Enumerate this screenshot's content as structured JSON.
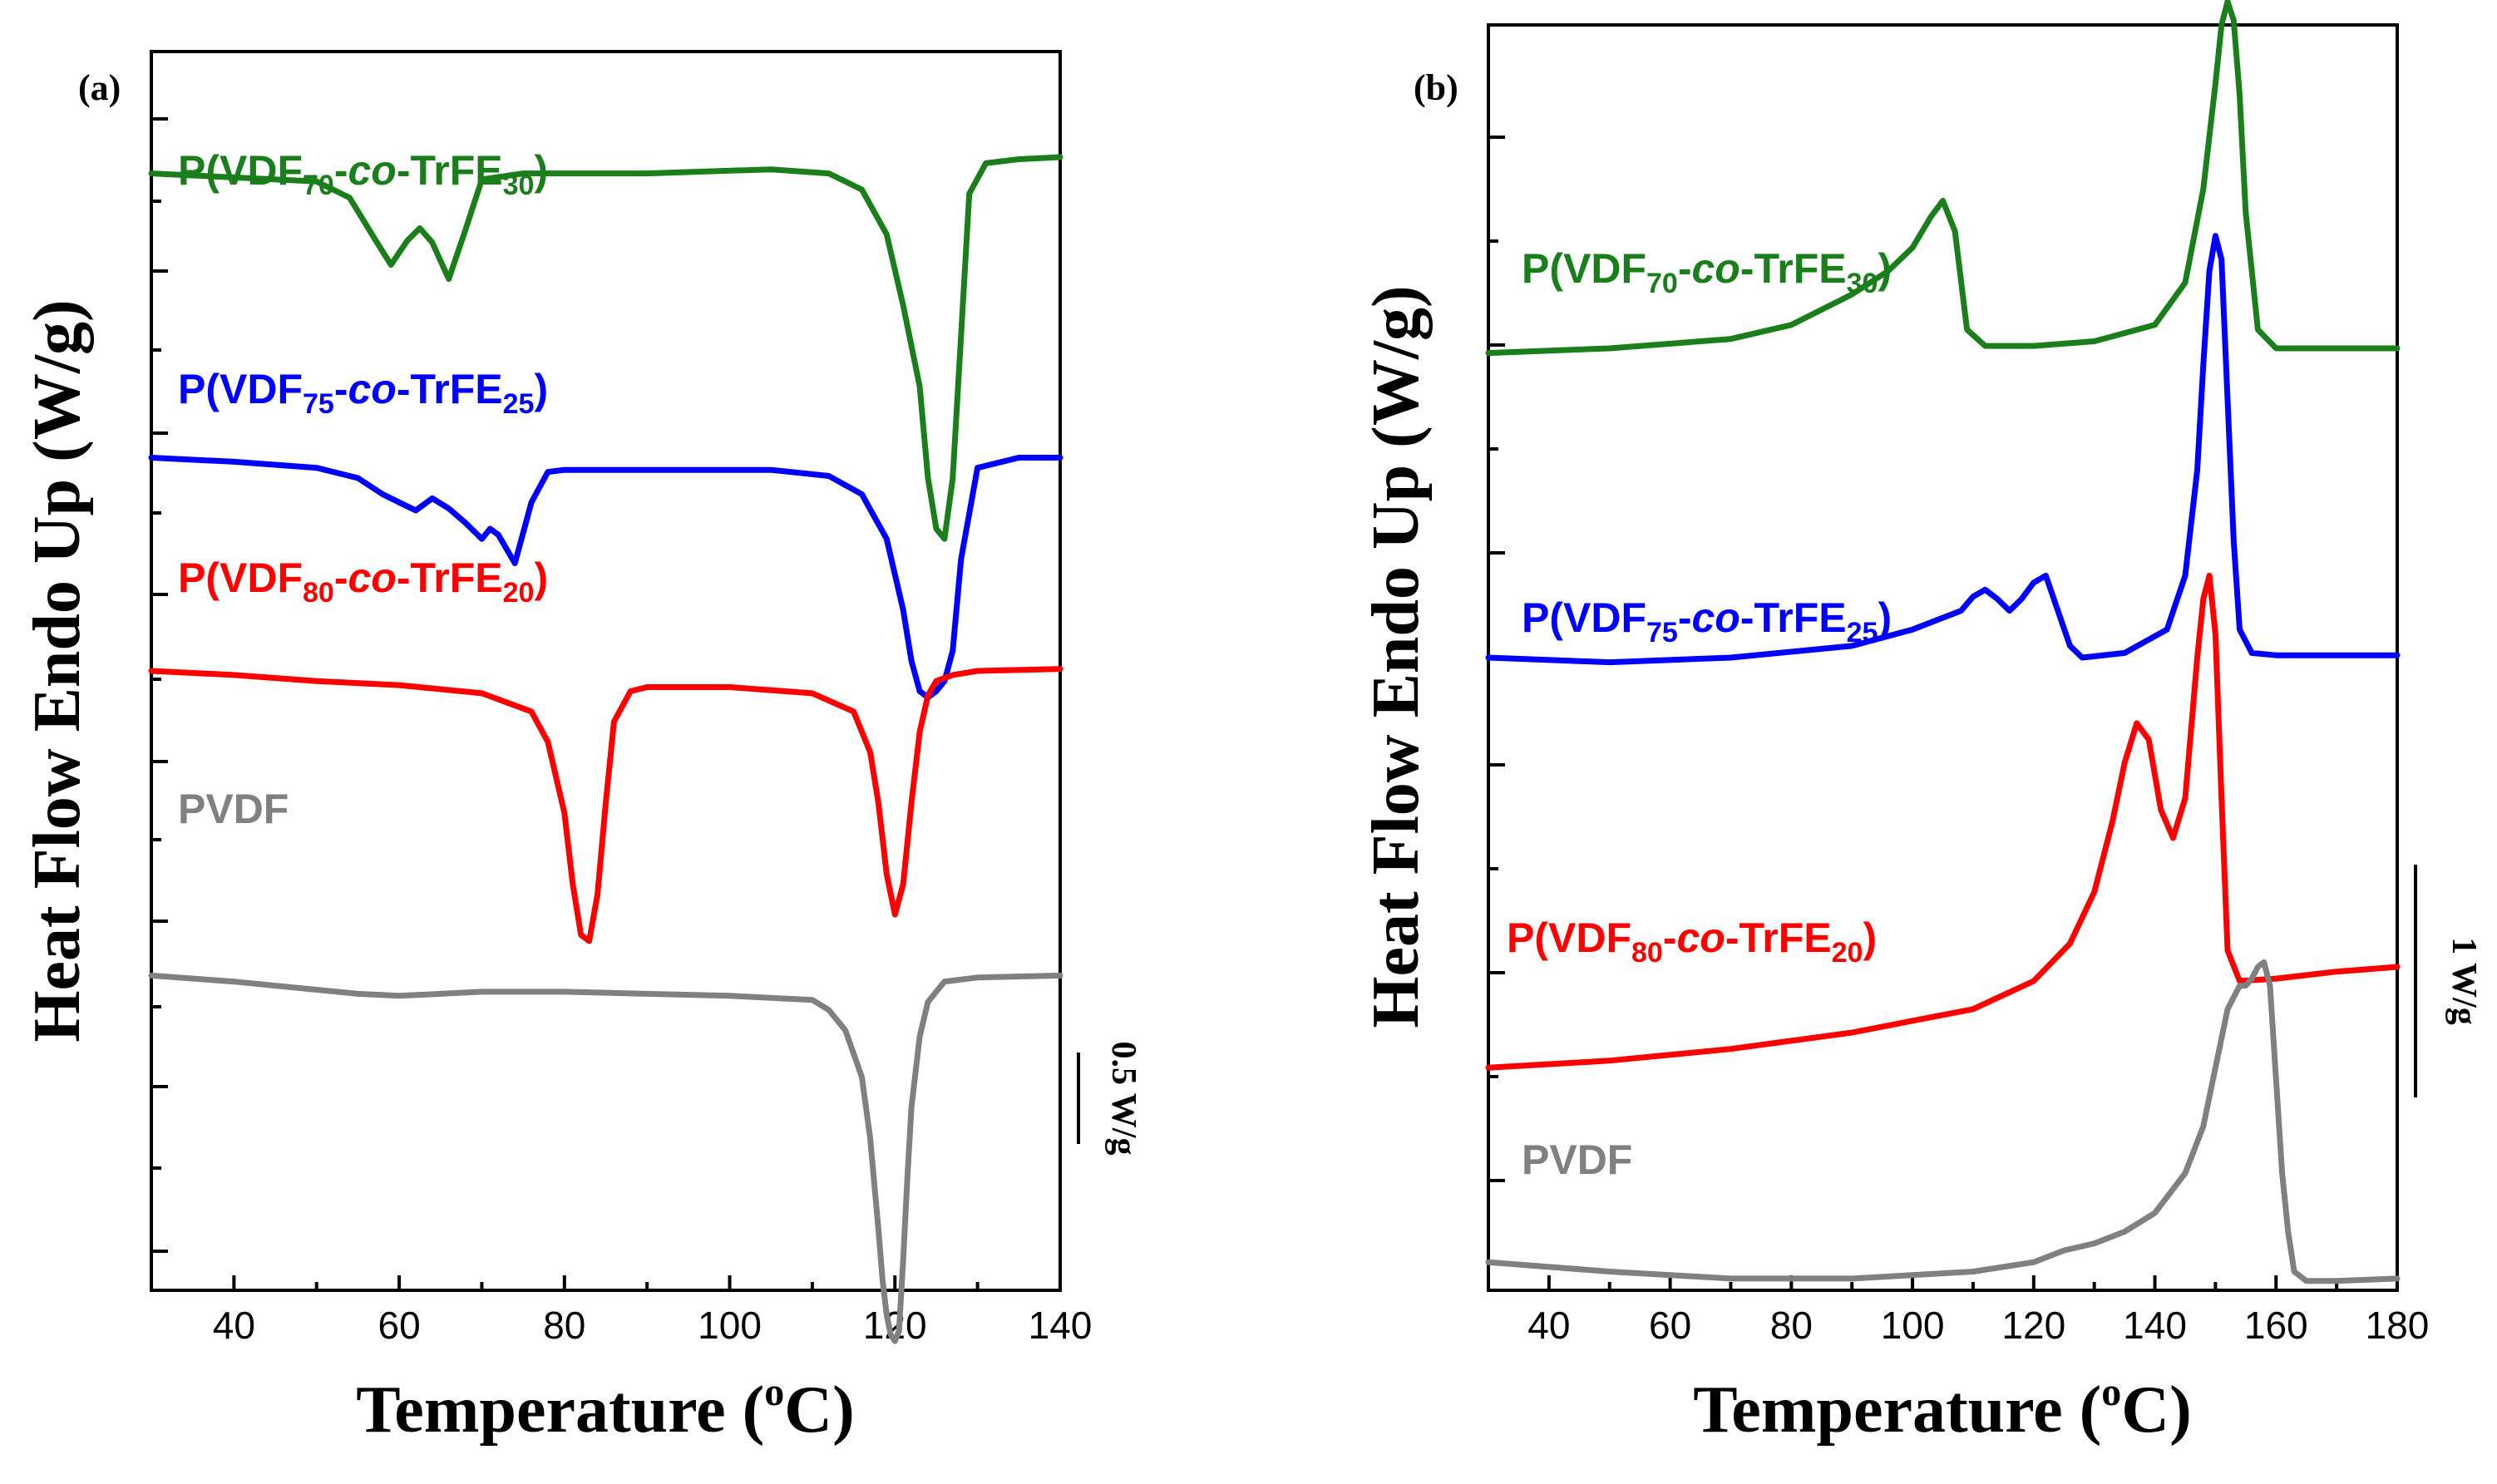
{
  "colors": {
    "green": "#1a7f1a",
    "blue": "#0000ff",
    "red": "#ff0000",
    "gray": "#808080",
    "axis": "#000000"
  },
  "chart_data": [
    {
      "panel": "(a)",
      "type": "line",
      "xlabel": "Temperature (oC)",
      "xlabel_main": "Temperature (",
      "xlabel_sup": "o",
      "xlabel_end": "C)",
      "ylabel": "Heat Flow Endo Up (W/g)",
      "xlim": [
        30,
        140
      ],
      "xticks": [
        40,
        60,
        80,
        100,
        120,
        140
      ],
      "ylim": [
        -5.5,
        0.6
      ],
      "grid": false,
      "scale_bar": {
        "label": "0.5 W/g",
        "value": 0.5
      },
      "series": [
        {
          "name": "P(VDF70-co-TrFE30)",
          "label_parts": [
            "P(VDF",
            "70",
            "-",
            "co",
            "-TrFE",
            "30",
            ")"
          ],
          "color": "green",
          "x": [
            30,
            40,
            50,
            54,
            57,
            59,
            61,
            62.5,
            64,
            66,
            68,
            70,
            75,
            90,
            105,
            112,
            116,
            119,
            121,
            123,
            124,
            125,
            126,
            127,
            128,
            129,
            131,
            135,
            140
          ],
          "y": [
            0,
            -0.02,
            -0.04,
            -0.12,
            -0.32,
            -0.45,
            -0.33,
            -0.27,
            -0.34,
            -0.52,
            -0.28,
            -0.03,
            0,
            0,
            0.02,
            0,
            -0.08,
            -0.3,
            -0.65,
            -1.05,
            -1.5,
            -1.75,
            -1.8,
            -1.5,
            -0.8,
            -0.1,
            0.05,
            0.07,
            0.08
          ]
        },
        {
          "name": "P(VDF75-co-TrFE25)",
          "label_parts": [
            "P(VDF",
            "75",
            "-",
            "co",
            "-TrFE",
            "25",
            ")"
          ],
          "color": "blue",
          "x": [
            30,
            40,
            50,
            55,
            58,
            60,
            62,
            64,
            66,
            68,
            70,
            71,
            72,
            74,
            76,
            78,
            80,
            90,
            105,
            112,
            116,
            119,
            121,
            122,
            123,
            124,
            125,
            126,
            127,
            128,
            130,
            135,
            140
          ],
          "y": [
            -1.4,
            -1.42,
            -1.45,
            -1.5,
            -1.58,
            -1.62,
            -1.66,
            -1.6,
            -1.65,
            -1.72,
            -1.8,
            -1.75,
            -1.78,
            -1.92,
            -1.62,
            -1.47,
            -1.46,
            -1.46,
            -1.46,
            -1.49,
            -1.58,
            -1.8,
            -2.15,
            -2.4,
            -2.55,
            -2.58,
            -2.55,
            -2.5,
            -2.35,
            -1.9,
            -1.45,
            -1.4,
            -1.4
          ]
        },
        {
          "name": "P(VDF80-co-TrFE20)",
          "label_parts": [
            "P(VDF",
            "80",
            "-",
            "co",
            "-TrFE",
            "20",
            ")"
          ],
          "color": "red",
          "x": [
            30,
            40,
            50,
            60,
            70,
            76,
            78,
            80,
            81,
            82,
            83,
            84,
            85,
            86,
            88,
            90,
            100,
            110,
            115,
            117,
            118,
            119,
            120,
            121,
            122,
            123,
            124,
            125,
            127,
            130,
            140
          ],
          "y": [
            -2.45,
            -2.47,
            -2.5,
            -2.52,
            -2.56,
            -2.65,
            -2.8,
            -3.15,
            -3.5,
            -3.75,
            -3.78,
            -3.55,
            -3.1,
            -2.7,
            -2.55,
            -2.53,
            -2.53,
            -2.56,
            -2.65,
            -2.85,
            -3.1,
            -3.45,
            -3.65,
            -3.5,
            -3.1,
            -2.75,
            -2.57,
            -2.5,
            -2.47,
            -2.45,
            -2.44
          ]
        },
        {
          "name": "PVDF",
          "label_parts": [
            "PVDF"
          ],
          "color": "gray",
          "x": [
            30,
            40,
            50,
            55,
            60,
            65,
            70,
            80,
            90,
            100,
            110,
            112,
            114,
            116,
            117,
            118,
            118.5,
            119,
            119.5,
            120,
            120.5,
            121,
            121.5,
            122,
            123,
            124,
            126,
            130,
            140
          ],
          "y": [
            -3.95,
            -3.98,
            -4.02,
            -4.04,
            -4.05,
            -4.04,
            -4.03,
            -4.03,
            -4.04,
            -4.05,
            -4.07,
            -4.12,
            -4.22,
            -4.45,
            -4.75,
            -5.2,
            -5.45,
            -5.62,
            -5.72,
            -5.75,
            -5.7,
            -5.35,
            -4.95,
            -4.6,
            -4.25,
            -4.08,
            -3.98,
            -3.96,
            -3.95
          ]
        }
      ]
    },
    {
      "panel": "(b)",
      "type": "line",
      "xlabel": "Temperature (oC)",
      "xlabel_main": "Temperature (",
      "xlabel_sup": "o",
      "xlabel_end": "C)",
      "ylabel": "Heat Flow Endo Up (W/g)",
      "xlim": [
        30,
        180
      ],
      "xticks": [
        40,
        60,
        80,
        100,
        120,
        140,
        160,
        180
      ],
      "ylim": [
        0,
        5.4
      ],
      "grid": false,
      "scale_bar": {
        "label": "1 W/g",
        "value": 1
      },
      "series": [
        {
          "name": "P(VDF70-co-TrFE30)",
          "label_parts": [
            "P(VDF",
            "70",
            "-",
            "co",
            "-TrFE",
            "30",
            ")"
          ],
          "color": "green",
          "x": [
            30,
            50,
            70,
            80,
            90,
            96,
            100,
            103,
            105,
            107,
            109,
            112,
            120,
            130,
            140,
            145,
            148,
            150,
            151,
            152,
            153,
            154,
            155,
            157,
            160,
            170,
            180
          ],
          "y": [
            4.0,
            4.02,
            4.06,
            4.12,
            4.25,
            4.35,
            4.45,
            4.58,
            4.65,
            4.52,
            4.1,
            4.03,
            4.03,
            4.05,
            4.12,
            4.3,
            4.7,
            5.15,
            5.4,
            5.5,
            5.42,
            5.1,
            4.6,
            4.1,
            4.02,
            4.02,
            4.02
          ]
        },
        {
          "name": "P(VDF75-co-TrFE25)",
          "label_parts": [
            "P(VDF",
            "75",
            "-",
            "co",
            "-TrFE",
            "25",
            ")"
          ],
          "color": "blue",
          "x": [
            30,
            50,
            70,
            90,
            100,
            108,
            110,
            112,
            114,
            116,
            118,
            120,
            122,
            124,
            126,
            128,
            135,
            142,
            145,
            147,
            148,
            149,
            150,
            151,
            152,
            153,
            154,
            156,
            160,
            180
          ],
          "y": [
            2.7,
            2.68,
            2.7,
            2.75,
            2.82,
            2.9,
            2.96,
            2.99,
            2.95,
            2.9,
            2.95,
            3.02,
            3.05,
            2.9,
            2.75,
            2.7,
            2.72,
            2.82,
            3.05,
            3.5,
            3.95,
            4.35,
            4.5,
            4.4,
            3.8,
            3.2,
            2.82,
            2.72,
            2.71,
            2.71
          ]
        },
        {
          "name": "P(VDF80-co-TrFE20)",
          "label_parts": [
            "P(VDF",
            "80",
            "-",
            "co",
            "-TrFE",
            "20",
            ")"
          ],
          "color": "red",
          "x": [
            30,
            50,
            70,
            90,
            110,
            120,
            126,
            130,
            133,
            135,
            137,
            139,
            141,
            143,
            145,
            146,
            147,
            148,
            149,
            150,
            151,
            152,
            154,
            160,
            170,
            180
          ],
          "y": [
            0.95,
            0.98,
            1.03,
            1.1,
            1.2,
            1.32,
            1.48,
            1.7,
            2.0,
            2.25,
            2.42,
            2.35,
            2.05,
            1.93,
            2.1,
            2.4,
            2.7,
            2.95,
            3.05,
            2.8,
            2.1,
            1.45,
            1.32,
            1.33,
            1.36,
            1.38
          ]
        },
        {
          "name": "PVDF",
          "label_parts": [
            "PVDF"
          ],
          "color": "gray",
          "x": [
            30,
            50,
            70,
            90,
            110,
            120,
            125,
            130,
            135,
            140,
            145,
            148,
            150,
            152,
            154,
            155,
            156,
            157,
            158,
            159,
            160,
            161,
            162,
            163,
            165,
            170,
            180
          ],
          "y": [
            0.12,
            0.08,
            0.05,
            0.05,
            0.08,
            0.12,
            0.17,
            0.2,
            0.25,
            0.33,
            0.5,
            0.7,
            0.95,
            1.2,
            1.3,
            1.3,
            1.33,
            1.38,
            1.4,
            1.3,
            0.9,
            0.5,
            0.25,
            0.08,
            0.04,
            0.04,
            0.05
          ]
        }
      ]
    }
  ]
}
